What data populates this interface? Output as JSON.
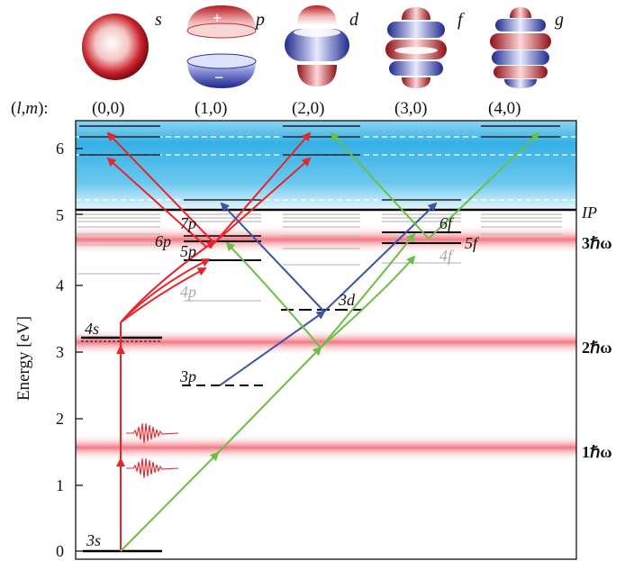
{
  "axis": {
    "ylabel": "Energy [eV]",
    "ylim": [
      0,
      6.5
    ],
    "yticks": [
      "0",
      "1",
      "2",
      "3",
      "4",
      "5",
      "6"
    ]
  },
  "lm_header": {
    "prefix": "(l,m):",
    "columns": [
      "(0,0)",
      "(1,0)",
      "(2,0)",
      "(3,0)",
      "(4,0)"
    ]
  },
  "orbitals": [
    {
      "symbol": "s"
    },
    {
      "symbol": "p",
      "plus": "+",
      "minus": "−"
    },
    {
      "symbol": "d"
    },
    {
      "symbol": "f"
    },
    {
      "symbol": "g"
    }
  ],
  "bands": [
    {
      "label": "1ℏω",
      "energy": 1.55
    },
    {
      "label": "2ℏω",
      "energy": 3.1
    },
    {
      "label": "3ℏω",
      "energy": 4.65
    }
  ],
  "ionization": {
    "label": "IP",
    "energy": 5.1
  },
  "states": [
    {
      "label": "3s",
      "energy": 0.0,
      "column": 0
    },
    {
      "label": "4s",
      "energy": 3.19,
      "column": 0
    },
    {
      "label": "3p",
      "energy": 2.1,
      "column": 1
    },
    {
      "label": "4p",
      "energy": 3.75,
      "column": 1
    },
    {
      "label": "5p",
      "energy": 4.35,
      "column": 1
    },
    {
      "label": "6p",
      "energy": 4.6,
      "column": 1
    },
    {
      "label": "7p",
      "energy": 4.77,
      "column": 1
    },
    {
      "label": "3d",
      "energy": 3.62,
      "column": 2
    },
    {
      "label": "4f",
      "energy": 4.3,
      "column": 3
    },
    {
      "label": "5f",
      "energy": 4.58,
      "column": 3
    },
    {
      "label": "6f",
      "energy": 4.77,
      "column": 3
    }
  ],
  "colors": {
    "red_path": "#e8242a",
    "blue_path": "#3c55a5",
    "green_path": "#6abf45",
    "band": "#f27e8a",
    "continuum": "#3fb4e6"
  }
}
